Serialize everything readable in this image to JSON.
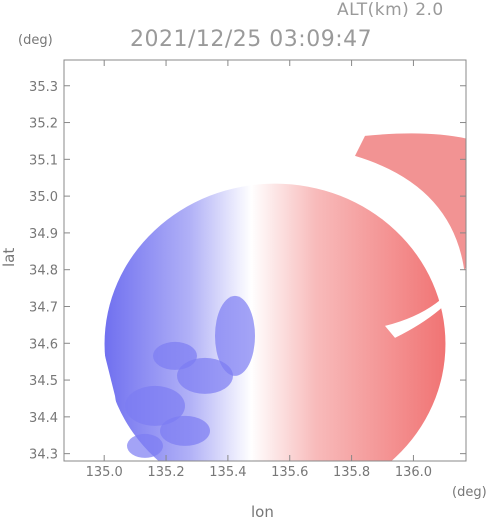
{
  "header": {
    "alt_label": "ALT(km) 2.0",
    "timestamp": "2021/12/25 03:09:47"
  },
  "chart_data": {
    "type": "heatmap",
    "title": "2021/12/25 03:09:47",
    "subtitle": "ALT(km) 2.0",
    "xlabel": "lon",
    "ylabel": "lat",
    "x_unit": "(deg)",
    "y_unit": "(deg)",
    "xlim": [
      134.87,
      136.17
    ],
    "ylim": [
      34.28,
      35.37
    ],
    "x_ticks": [
      "135.0",
      "135.2",
      "135.4",
      "135.6",
      "135.8",
      "136.0"
    ],
    "y_ticks": [
      "34.3",
      "34.4",
      "34.5",
      "34.6",
      "34.7",
      "34.8",
      "34.9",
      "35.0",
      "35.1",
      "35.2",
      "35.3"
    ],
    "grid": false,
    "colorscale": {
      "negative": "#6b6bf0",
      "zero": "#ffffff",
      "positive": "#f06b6b"
    },
    "radar_center": {
      "lon": 135.52,
      "lat": 34.62
    },
    "coverage_radius_deg": 0.5,
    "data_pattern": "Doppler velocity: negative (blue) west of radar center, positive (red) to the east and northeast"
  }
}
